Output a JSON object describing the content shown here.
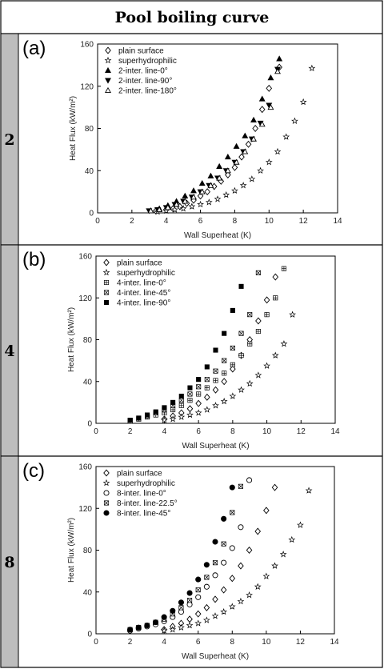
{
  "title": "Pool boiling curve",
  "chart_data": [
    {
      "type": "scatter",
      "row_label": "2",
      "panel_label": "(a)",
      "xlabel": "Wall Superheat (K)",
      "ylabel": "Heat Flux (kW/m²)",
      "xlim": [
        0,
        14
      ],
      "ylim": [
        0,
        160
      ],
      "xticks": [
        0,
        2,
        4,
        6,
        8,
        10,
        12,
        14
      ],
      "yticks": [
        0,
        40,
        80,
        120,
        160
      ],
      "legend_position": "top-left",
      "series": [
        {
          "name": "plain surface",
          "marker": "diamond-open",
          "x": [
            3.4,
            4.0,
            4.4,
            4.8,
            5.2,
            5.6,
            6.0,
            6.4,
            6.8,
            7.2,
            7.6,
            8.0,
            8.4,
            8.8,
            9.2,
            9.6,
            10.0,
            10.6
          ],
          "y": [
            2,
            3,
            4,
            6,
            9,
            12,
            16,
            20,
            25,
            30,
            36,
            43,
            53,
            65,
            80,
            98,
            118,
            138
          ]
        },
        {
          "name": "superhydrophilic",
          "marker": "star-open",
          "x": [
            3.5,
            4.0,
            4.5,
            5.0,
            5.5,
            6.0,
            6.5,
            7.0,
            7.5,
            8.0,
            8.5,
            9.0,
            9.5,
            10.0,
            10.5,
            11.0,
            11.5,
            12.0,
            12.5
          ],
          "y": [
            1,
            2,
            3,
            4,
            6,
            8,
            10,
            13,
            17,
            21,
            26,
            32,
            40,
            48,
            58,
            72,
            87,
            105,
            137
          ]
        },
        {
          "name": "2-inter. line-0°",
          "marker": "triangle-up-filled",
          "x": [
            3.1,
            3.6,
            4.1,
            4.6,
            5.1,
            5.6,
            6.1,
            6.6,
            7.1,
            7.6,
            8.1,
            8.6,
            9.1,
            9.6,
            10.1,
            10.6
          ],
          "y": [
            2,
            4,
            7,
            11,
            16,
            21,
            28,
            35,
            44,
            53,
            63,
            73,
            88,
            108,
            128,
            146
          ]
        },
        {
          "name": "2-inter. line-90°",
          "marker": "triangle-down-filled",
          "x": [
            3.0,
            3.5,
            4.0,
            4.5,
            5.0,
            5.5,
            6.0,
            6.5,
            7.0,
            7.5,
            8.0,
            8.5,
            9.0,
            9.5,
            10.0,
            10.5
          ],
          "y": [
            2,
            3,
            5,
            8,
            11,
            15,
            20,
            26,
            33,
            40,
            48,
            58,
            70,
            85,
            102,
            136
          ]
        },
        {
          "name": "2-inter. line-180°",
          "marker": "triangle-up-open",
          "x": [
            3.1,
            3.6,
            4.1,
            4.6,
            5.1,
            5.6,
            6.1,
            6.6,
            7.1,
            7.6,
            8.1,
            8.6,
            9.1,
            9.6,
            10.1,
            10.5
          ],
          "y": [
            2,
            3,
            5,
            8,
            11,
            15,
            20,
            26,
            33,
            40,
            48,
            58,
            70,
            84,
            100,
            134
          ]
        }
      ]
    },
    {
      "type": "scatter",
      "row_label": "4",
      "panel_label": "(b)",
      "xlabel": "Wall Superheat (K)",
      "ylabel": "Heat Flux (kW/m²)",
      "xlim": [
        0,
        14
      ],
      "ylim": [
        0,
        160
      ],
      "xticks": [
        0,
        2,
        4,
        6,
        8,
        10,
        12,
        14
      ],
      "yticks": [
        0,
        40,
        80,
        120,
        160
      ],
      "legend_position": "top-left",
      "series": [
        {
          "name": "plain surface",
          "marker": "diamond-open",
          "x": [
            4.0,
            4.5,
            5.0,
            5.5,
            6.0,
            6.5,
            7.0,
            7.5,
            8.0,
            8.5,
            9.0,
            9.5,
            10.0,
            10.5
          ],
          "y": [
            4,
            7,
            10,
            14,
            19,
            25,
            32,
            40,
            52,
            65,
            80,
            98,
            118,
            140
          ]
        },
        {
          "name": "superhydrophilic",
          "marker": "star-open",
          "x": [
            4.0,
            4.5,
            5.0,
            5.5,
            6.0,
            6.5,
            7.0,
            7.5,
            8.0,
            8.5,
            9.0,
            9.5,
            10.0,
            10.5,
            11.0,
            11.5
          ],
          "y": [
            3,
            4,
            6,
            8,
            10,
            13,
            17,
            21,
            26,
            32,
            38,
            46,
            55,
            65,
            76,
            104
          ]
        },
        {
          "name": "4-inter. line-0°",
          "marker": "square-plus",
          "x": [
            2.0,
            2.5,
            3.0,
            3.5,
            4.0,
            4.5,
            5.0,
            5.5,
            6.0,
            6.5,
            7.0,
            7.5,
            8.0,
            8.5,
            9.0,
            9.5,
            10.0,
            10.5,
            11.0
          ],
          "y": [
            2,
            4,
            6,
            8,
            10,
            13,
            17,
            22,
            28,
            34,
            41,
            48,
            56,
            65,
            76,
            88,
            104,
            120,
            148
          ]
        },
        {
          "name": "4-inter. line-45°",
          "marker": "square-x",
          "x": [
            2.0,
            2.5,
            3.0,
            3.5,
            4.0,
            4.5,
            5.0,
            5.5,
            6.0,
            6.5,
            7.0,
            7.5,
            8.0,
            8.5,
            9.0,
            9.5
          ],
          "y": [
            3,
            5,
            7,
            10,
            13,
            17,
            22,
            28,
            35,
            42,
            50,
            60,
            72,
            86,
            104,
            144
          ]
        },
        {
          "name": "4-inter. line-90°",
          "marker": "square-filled",
          "x": [
            2.0,
            2.5,
            3.0,
            3.5,
            4.0,
            4.5,
            5.0,
            5.5,
            6.0,
            6.5,
            7.0,
            7.5,
            8.0,
            8.5
          ],
          "y": [
            3,
            5,
            8,
            11,
            15,
            20,
            26,
            34,
            42,
            54,
            70,
            86,
            108,
            131
          ]
        }
      ]
    },
    {
      "type": "scatter",
      "row_label": "8",
      "panel_label": "(c)",
      "xlabel": "Wall Superheat (K)",
      "ylabel": "Heat Flux (kW/m²)",
      "xlim": [
        0,
        14
      ],
      "ylim": [
        0,
        160
      ],
      "xticks": [
        0,
        2,
        4,
        6,
        8,
        10,
        12,
        14
      ],
      "yticks": [
        0,
        40,
        80,
        120,
        160
      ],
      "legend_position": "top-left",
      "series": [
        {
          "name": "plain surface",
          "marker": "diamond-open",
          "x": [
            4.0,
            4.5,
            5.0,
            5.5,
            6.0,
            6.5,
            7.0,
            7.5,
            8.0,
            8.5,
            9.0,
            9.5,
            10.0,
            10.5
          ],
          "y": [
            4,
            7,
            10,
            14,
            19,
            25,
            33,
            42,
            53,
            65,
            80,
            98,
            118,
            140
          ]
        },
        {
          "name": "superhydrophilic",
          "marker": "star-open",
          "x": [
            4.0,
            4.5,
            5.0,
            5.5,
            6.0,
            6.5,
            7.0,
            7.5,
            8.0,
            8.5,
            9.0,
            9.5,
            10.0,
            10.5,
            11.0,
            11.5,
            12.0,
            12.5
          ],
          "y": [
            3,
            4,
            6,
            8,
            10,
            13,
            17,
            21,
            26,
            31,
            37,
            45,
            55,
            65,
            76,
            90,
            104,
            137
          ]
        },
        {
          "name": "8-inter. line-0°",
          "marker": "circle-open",
          "x": [
            2.0,
            2.5,
            3.0,
            3.5,
            4.0,
            4.5,
            5.0,
            5.5,
            6.0,
            6.5,
            7.0,
            7.5,
            8.0,
            8.5,
            9.0
          ],
          "y": [
            3,
            5,
            7,
            9,
            12,
            16,
            21,
            28,
            35,
            45,
            56,
            68,
            82,
            102,
            147
          ]
        },
        {
          "name": "8-inter. line-22.5°",
          "marker": "square-x",
          "x": [
            2.0,
            2.5,
            3.0,
            3.5,
            4.0,
            4.5,
            5.0,
            5.5,
            6.0,
            6.5,
            7.0,
            7.5,
            8.0,
            8.5
          ],
          "y": [
            4,
            6,
            8,
            11,
            14,
            19,
            25,
            32,
            42,
            54,
            68,
            86,
            116,
            141
          ]
        },
        {
          "name": "8-inter. line-45°",
          "marker": "circle-filled",
          "x": [
            2.0,
            2.5,
            3.0,
            3.5,
            4.0,
            4.5,
            5.0,
            5.5,
            6.0,
            6.5,
            7.0,
            7.5,
            8.0
          ],
          "y": [
            4,
            6,
            8,
            11,
            16,
            22,
            30,
            39,
            52,
            66,
            88,
            110,
            140
          ]
        }
      ]
    }
  ]
}
